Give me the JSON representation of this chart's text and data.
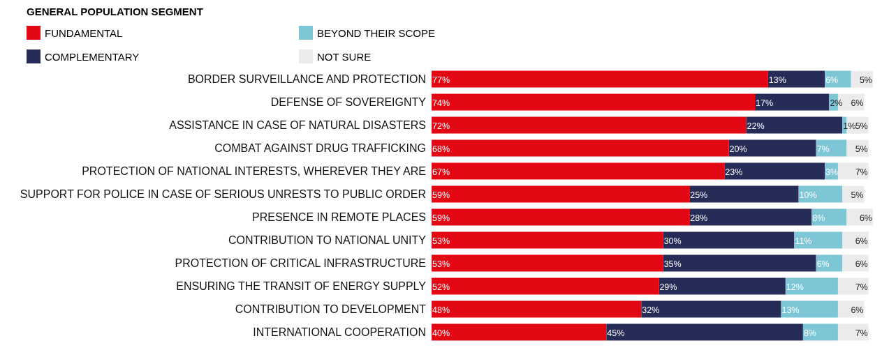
{
  "chart_data": {
    "type": "bar",
    "orientation": "horizontal",
    "stacked": true,
    "title": "GENERAL POPULATION SEGMENT",
    "legend": "top left",
    "grid": false,
    "categories": [
      "BORDER SURVEILLANCE AND PROTECTION",
      "DEFENSE OF SOVEREIGNTY",
      "ASSISTANCE IN CASE OF NATURAL DISASTERS",
      "COMBAT AGAINST DRUG TRAFFICKING",
      "PROTECTION OF NATIONAL INTERESTS, WHEREVER THEY ARE",
      "SUPPORT FOR POLICE IN CASE OF SERIOUS UNRESTS TO PUBLIC ORDER",
      "PRESENCE IN REMOTE PLACES",
      "CONTRIBUTION TO NATIONAL UNITY",
      "PROTECTION OF CRITICAL INFRASTRUCTURE ",
      "ENSURING THE TRANSIT OF ENERGY SUPPLY",
      "CONTRIBUTION TO DEVELOPMENT",
      "INTERNATIONAL COOPERATION"
    ],
    "series": [
      {
        "name": "FUNDAMENTAL",
        "color": "#e30613",
        "values": [
          77,
          74,
          72,
          68,
          67,
          59,
          59,
          53,
          53,
          52,
          48,
          40
        ],
        "value_labels": [
          "77%",
          "74%",
          "72%",
          "68%",
          "67%",
          "59%",
          "59%",
          "53%",
          "53%",
          "52%",
          "48%",
          "40%"
        ]
      },
      {
        "name": "COMPLEMENTARY",
        "color": "#262c58",
        "values": [
          13,
          17,
          22,
          20,
          23,
          25,
          28,
          30,
          35,
          29,
          32,
          45
        ],
        "value_labels": [
          "13%",
          "17%",
          "22%",
          "20%",
          "23%",
          "25%",
          "28%",
          "30%",
          "35%",
          "29%",
          "32%",
          "45%"
        ]
      },
      {
        "name": "BEYOND THEIR SCOPE",
        "color": "#7cc6d6",
        "values": [
          6,
          2,
          1,
          7,
          3,
          10,
          8,
          11,
          6,
          12,
          13,
          8
        ],
        "value_labels": [
          "6%",
          "2%",
          "1%",
          "7%",
          "3%",
          "10%",
          "8%",
          "11%",
          "6%",
          "12%",
          "13%",
          "8%"
        ]
      },
      {
        "name": "NOT SURE",
        "color": "#ebebeb",
        "values": [
          5,
          6,
          5,
          5,
          7,
          5,
          6,
          6,
          6,
          7,
          6,
          7
        ],
        "value_labels": [
          "5%",
          "6%",
          "5%",
          "5%",
          "7%",
          "5%",
          "6%",
          "6%",
          "6%",
          "7%",
          "6%",
          "7%"
        ]
      }
    ]
  }
}
